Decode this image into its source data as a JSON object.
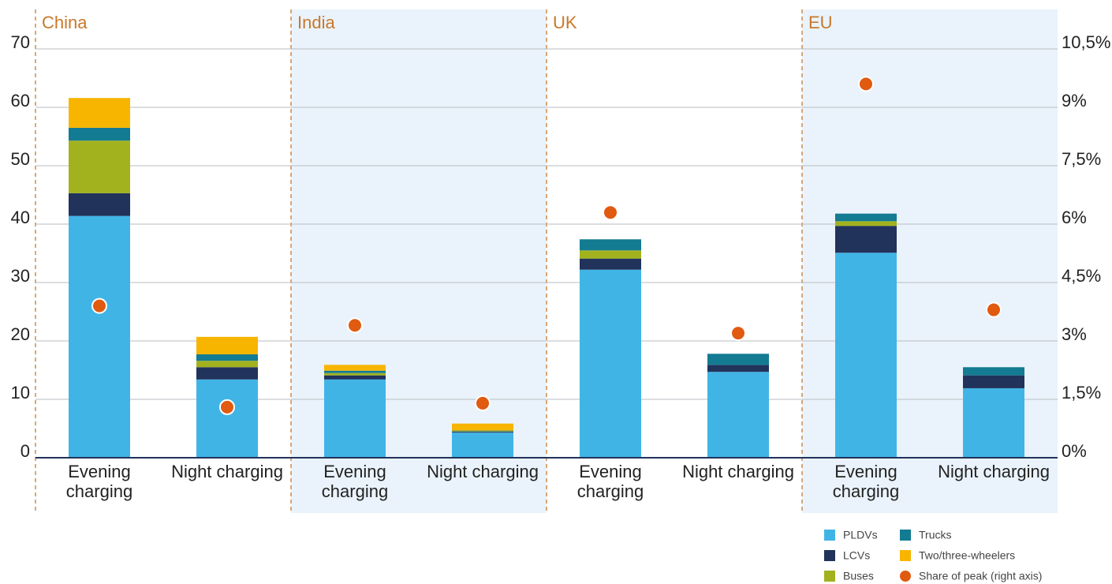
{
  "chart_data": {
    "type": "bar",
    "stacked": true,
    "groups": [
      "China",
      "India",
      "UK",
      "EU"
    ],
    "categories": [
      "Evening charging",
      "Night charging",
      "Evening charging",
      "Night charging",
      "Evening charging",
      "Night charging",
      "Evening charging",
      "Night charging"
    ],
    "series": [
      {
        "name": "PLDVs",
        "color": "#41b4e6",
        "values": [
          41.4,
          13.4,
          13.4,
          4.3,
          32.2,
          14.7,
          35.1,
          11.9
        ]
      },
      {
        "name": "LCVs",
        "color": "#21335b",
        "values": [
          3.9,
          2.1,
          0.7,
          0.15,
          1.9,
          1.2,
          4.6,
          2.2
        ]
      },
      {
        "name": "Buses",
        "color": "#a2b21f",
        "values": [
          9.0,
          1.1,
          0.4,
          0.1,
          1.4,
          0,
          0.8,
          0
        ]
      },
      {
        "name": "Trucks",
        "color": "#137b92",
        "values": [
          2.2,
          1.1,
          0.4,
          0.1,
          1.9,
          1.9,
          1.3,
          1.4
        ]
      },
      {
        "name": "Two/three-wheelers",
        "color": "#f7b500",
        "values": [
          5.1,
          3.0,
          1.0,
          1.2,
          0,
          0,
          0,
          0
        ]
      },
      {
        "name": "Share of peak (right axis)",
        "color": "#e05a10",
        "type": "scatter",
        "axis": "y2",
        "values": [
          3.9,
          1.3,
          3.4,
          1.4,
          6.3,
          3.2,
          9.6,
          3.8
        ]
      }
    ],
    "ylim": [
      0,
      70
    ],
    "yticks": [
      0,
      10,
      20,
      30,
      40,
      50,
      60,
      70
    ],
    "y2lim": [
      0,
      10.5
    ],
    "y2ticks": [
      {
        "value": 0,
        "label": "0%"
      },
      {
        "value": 1.5,
        "label": "1,5%"
      },
      {
        "value": 3,
        "label": "3%"
      },
      {
        "value": 4.5,
        "label": "4,5%"
      },
      {
        "value": 6,
        "label": "6%"
      },
      {
        "value": 7.5,
        "label": "7,5%"
      },
      {
        "value": 9,
        "label": "9%"
      },
      {
        "value": 10.5,
        "label": "10,5%"
      }
    ],
    "grid": true
  }
}
